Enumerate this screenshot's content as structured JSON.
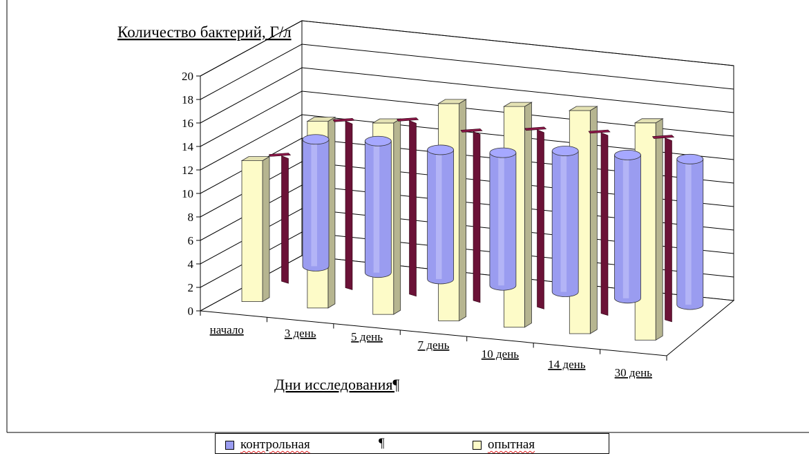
{
  "chart_data": {
    "type": "bar",
    "title": "Количество бактерий, Г/л",
    "xlabel": "Дни исследования¶",
    "ylabel": "Количество бактерий, Г/л",
    "ylim": [
      0,
      20
    ],
    "ytick_labels": [
      "0",
      "2",
      "4",
      "6",
      "8",
      "10",
      "12",
      "14",
      "16",
      "18",
      "20"
    ],
    "categories": [
      "начало",
      "3 день",
      "5 день",
      "7 день",
      "10 день",
      "14 день",
      "30 день"
    ],
    "series": [
      {
        "name": "контрольная",
        "color": "#9a9cf0",
        "shape": "cylinder",
        "values": [
          10.8,
          11.2,
          11.0,
          11.3,
          12.0,
          12.2,
          12.4
        ]
      },
      {
        "name": "",
        "color": "#6b1237",
        "shape": "thin-bar",
        "values": [
          11.1,
          14.6,
          15.2,
          14.8,
          15.5,
          15.8,
          15.9
        ]
      },
      {
        "name": "опытная",
        "color": "#fdfbc8",
        "shape": "box",
        "values": [
          12.0,
          15.9,
          16.3,
          18.5,
          18.8,
          19.0,
          18.5
        ]
      }
    ],
    "grid": true,
    "legend_position": "bottom"
  },
  "legend": {
    "items": [
      {
        "label": "контрольная",
        "color": "#9a9cf0"
      },
      {
        "label": "опытная",
        "color": "#fdfbc8"
      }
    ],
    "separator": "¶"
  }
}
